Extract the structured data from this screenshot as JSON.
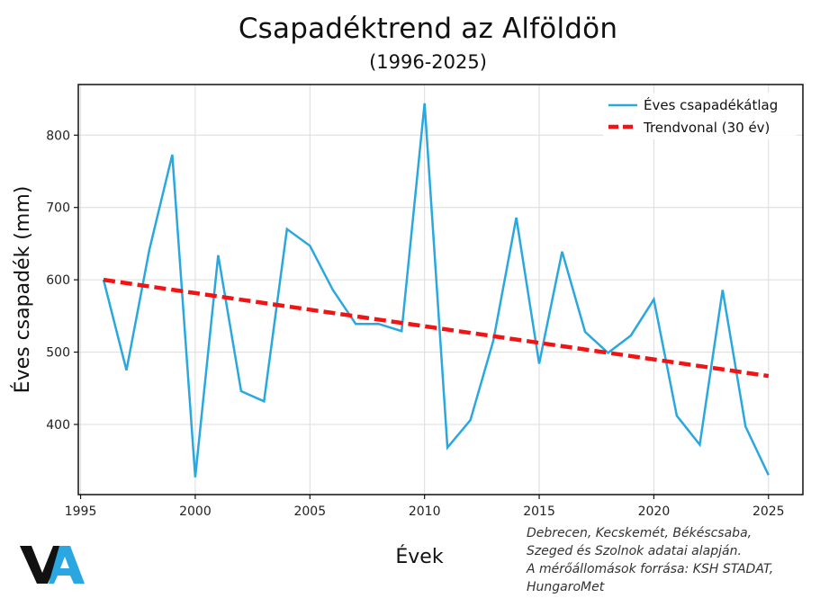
{
  "chart_data": {
    "type": "line",
    "title": "Csapadéktrend az Alföldön",
    "subtitle": "(1996-2025)",
    "xlabel": "Évek",
    "ylabel": "Éves csapadék (mm)",
    "xlim": [
      1994.9,
      2026.5
    ],
    "ylim": [
      303,
      870
    ],
    "xticks": [
      1995,
      2000,
      2005,
      2010,
      2015,
      2020,
      2025
    ],
    "yticks": [
      400,
      500,
      600,
      700,
      800
    ],
    "grid": true,
    "legend_position": "top-right",
    "x": [
      1996,
      1997,
      1998,
      1999,
      2000,
      2001,
      2002,
      2003,
      2004,
      2005,
      2006,
      2007,
      2008,
      2009,
      2010,
      2011,
      2012,
      2013,
      2014,
      2015,
      2016,
      2017,
      2018,
      2019,
      2020,
      2021,
      2022,
      2023,
      2024,
      2025
    ],
    "series": [
      {
        "name": "Éves csapadékátlag",
        "color": "#29a8e0",
        "style": "solid",
        "values": [
          600,
          475,
          642,
          773,
          327,
          634,
          446,
          432,
          670,
          647,
          586,
          539,
          539,
          529,
          844,
          368,
          406,
          516,
          686,
          484,
          639,
          528,
          499,
          523,
          573,
          412,
          372,
          586,
          397,
          330
        ]
      },
      {
        "name": "Trendvonal (30 év)",
        "color": "#f01414",
        "style": "dashed",
        "x": [
          1996,
          2025
        ],
        "values": [
          600,
          467
        ]
      }
    ]
  },
  "source_note": [
    "Debrecen, Kecskemét, Békéscsaba,",
    "Szeged és Szolnok adatai alapján.",
    "A mérőállomások forrása: KSH STADAT,",
    "HungaroMet"
  ],
  "logo": {
    "text": "VA",
    "primary_color": "#111111",
    "accent_color": "#2aa7e0"
  }
}
